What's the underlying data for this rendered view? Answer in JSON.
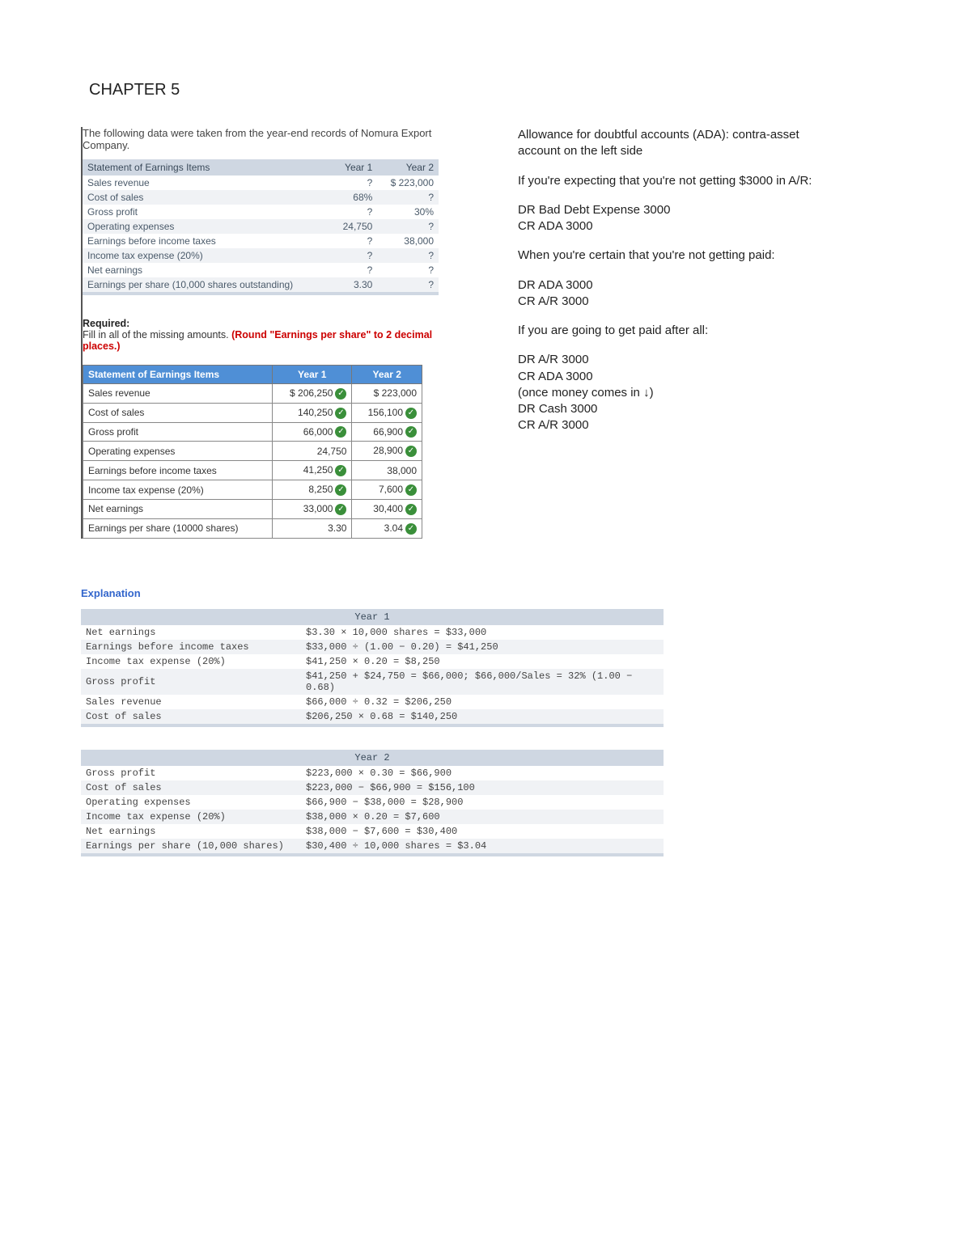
{
  "chapter_title": "CHAPTER 5",
  "intro": "The following data were taken from the year-end records of Nomura Export Company.",
  "table1": {
    "header": {
      "c0": "Statement of Earnings Items",
      "c1": "Year 1",
      "c2": "Year 2"
    },
    "rows": [
      {
        "label": "Sales revenue",
        "y1": "?",
        "y2": "$ 223,000"
      },
      {
        "label": "Cost of sales",
        "y1": "68%",
        "y2": "?"
      },
      {
        "label": "Gross profit",
        "y1": "?",
        "y2": "30%"
      },
      {
        "label": "Operating expenses",
        "y1": "24,750",
        "y2": "?"
      },
      {
        "label": "Earnings before income taxes",
        "y1": "?",
        "y2": "38,000"
      },
      {
        "label": "Income tax expense (20%)",
        "y1": "?",
        "y2": "?"
      },
      {
        "label": "Net earnings",
        "y1": "?",
        "y2": "?"
      },
      {
        "label": "Earnings per share (10,000 shares outstanding)",
        "y1": "3.30",
        "y2": "?"
      }
    ]
  },
  "required": {
    "label": "Required:",
    "text": "Fill in all of the missing amounts. ",
    "red": "(Round \"Earnings per share\" to 2 decimal places.)"
  },
  "answer": {
    "header": {
      "c0": "Statement of Earnings Items",
      "c1": "Year 1",
      "c2": "Year 2"
    },
    "rows": [
      {
        "label": "Sales revenue",
        "y1": "$ 206,250",
        "y1c": true,
        "y2": "$ 223,000",
        "y2c": false
      },
      {
        "label": "Cost of sales",
        "y1": "140,250",
        "y1c": true,
        "y2": "156,100",
        "y2c": true
      },
      {
        "label": "Gross profit",
        "y1": "66,000",
        "y1c": true,
        "y2": "66,900",
        "y2c": true
      },
      {
        "label": "Operating expenses",
        "y1": "24,750",
        "y1c": false,
        "y2": "28,900",
        "y2c": true
      },
      {
        "label": "Earnings before income taxes",
        "y1": "41,250",
        "y1c": true,
        "y2": "38,000",
        "y2c": false
      },
      {
        "label": "Income tax expense (20%)",
        "y1": "8,250",
        "y1c": true,
        "y2": "7,600",
        "y2c": true
      },
      {
        "label": "Net earnings",
        "y1": "33,000",
        "y1c": true,
        "y2": "30,400",
        "y2c": true
      },
      {
        "label": "Earnings per share (10000 shares)",
        "y1": "3.30",
        "y1c": false,
        "y2": "3.04",
        "y2c": true
      }
    ]
  },
  "notes": {
    "p1": "Allowance for doubtful accounts (ADA): contra-asset account on the left side",
    "p2": "If you're expecting that you're not getting $3000 in A/R:",
    "p3a": "DR Bad Debt Expense 3000",
    "p3b": "CR ADA  3000",
    "p4": "When you're certain that you're not getting paid:",
    "p5a": "DR ADA 3000",
    "p5b": "CR A/R 3000",
    "p6": "If you are going to get paid after all:",
    "p7a": "DR A/R 3000",
    "p7b": "CR ADA 3000",
    "p7c": "(once money comes in ↓)",
    "p7d": "DR Cash 3000",
    "p7e": "CR A/R 3000"
  },
  "explanation_title": "Explanation",
  "exp1": {
    "header": "Year 1",
    "rows": [
      {
        "label": "Net earnings",
        "calc": "$3.30 × 10,000 shares = $33,000"
      },
      {
        "label": "Earnings before income taxes",
        "calc": "$33,000 ÷ (1.00 − 0.20) = $41,250"
      },
      {
        "label": "Income tax expense (20%)",
        "calc": "$41,250 × 0.20 = $8,250"
      },
      {
        "label": "Gross profit",
        "calc": "$41,250 + $24,750 = $66,000; $66,000/Sales = 32% (1.00 − 0.68)"
      },
      {
        "label": "Sales revenue",
        "calc": "$66,000 ÷ 0.32 = $206,250"
      },
      {
        "label": "Cost of sales",
        "calc": "$206,250 × 0.68 = $140,250"
      }
    ]
  },
  "exp2": {
    "header": "Year 2",
    "rows": [
      {
        "label": "Gross profit",
        "calc": "$223,000 × 0.30 = $66,900"
      },
      {
        "label": "Cost of sales",
        "calc": "$223,000 − $66,900 = $156,100"
      },
      {
        "label": "Operating expenses",
        "calc": "$66,900 − $38,000 = $28,900"
      },
      {
        "label": "Income tax expense (20%)",
        "calc": "$38,000 × 0.20 = $7,600"
      },
      {
        "label": "Net earnings",
        "calc": "$38,000 − $7,600 = $30,400"
      },
      {
        "label": "Earnings per share (10,000 shares)",
        "calc": "$30,400 ÷ 10,000 shares = $3.04"
      }
    ]
  }
}
